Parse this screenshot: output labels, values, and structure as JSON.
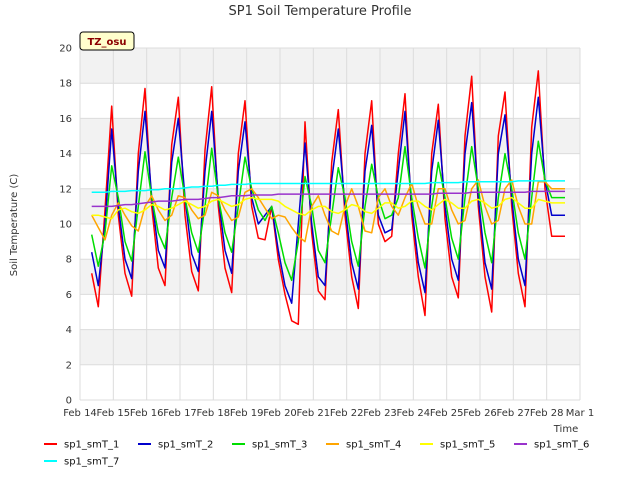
{
  "chart_data": {
    "type": "line",
    "title": "SP1 Soil Temperature Profile",
    "xlabel": "Time",
    "ylabel": "Soil Temperature (C)",
    "badge": "TZ_osu",
    "ylim": [
      0,
      20
    ],
    "yticks": [
      0,
      2,
      4,
      6,
      8,
      10,
      12,
      14,
      16,
      18,
      20
    ],
    "xlim": [
      0,
      15
    ],
    "xticks": [
      {
        "pos": 0,
        "label": "Feb 14"
      },
      {
        "pos": 1,
        "label": "Feb 15"
      },
      {
        "pos": 2,
        "label": "Feb 16"
      },
      {
        "pos": 3,
        "label": "Feb 17"
      },
      {
        "pos": 4,
        "label": "Feb 18"
      },
      {
        "pos": 5,
        "label": "Feb 19"
      },
      {
        "pos": 6,
        "label": "Feb 20"
      },
      {
        "pos": 7,
        "label": "Feb 21"
      },
      {
        "pos": 8,
        "label": "Feb 22"
      },
      {
        "pos": 9,
        "label": "Feb 23"
      },
      {
        "pos": 10,
        "label": "Feb 24"
      },
      {
        "pos": 11,
        "label": "Feb 25"
      },
      {
        "pos": 12,
        "label": "Feb 26"
      },
      {
        "pos": 13,
        "label": "Feb 27"
      },
      {
        "pos": 14,
        "label": "Feb 28"
      },
      {
        "pos": 15,
        "label": "Mar 1"
      }
    ],
    "grid": true,
    "legend_position": "bottom",
    "x": [
      0.35,
      0.55,
      0.75,
      0.95,
      1.15,
      1.35,
      1.55,
      1.75,
      1.95,
      2.15,
      2.35,
      2.55,
      2.75,
      2.95,
      3.15,
      3.35,
      3.55,
      3.75,
      3.95,
      4.15,
      4.35,
      4.55,
      4.75,
      4.95,
      5.15,
      5.35,
      5.55,
      5.75,
      5.95,
      6.15,
      6.35,
      6.55,
      6.75,
      6.95,
      7.15,
      7.35,
      7.55,
      7.75,
      7.95,
      8.15,
      8.35,
      8.55,
      8.75,
      8.95,
      9.15,
      9.35,
      9.55,
      9.75,
      9.95,
      10.15,
      10.35,
      10.55,
      10.75,
      10.95,
      11.15,
      11.35,
      11.55,
      11.75,
      11.95,
      12.15,
      12.35,
      12.55,
      12.75,
      12.95,
      13.15,
      13.35,
      13.55,
      13.75,
      13.95,
      14.15,
      14.35,
      14.55
    ],
    "series": [
      {
        "name": "sp1_smT_1",
        "color": "#ff0000",
        "values": [
          7.2,
          5.3,
          10.8,
          16.7,
          10.5,
          7.2,
          5.9,
          14.0,
          17.7,
          11.0,
          7.5,
          6.5,
          14.5,
          17.2,
          10.5,
          7.3,
          6.2,
          14.2,
          17.8,
          11.0,
          7.5,
          6.1,
          14.0,
          17.0,
          11.0,
          9.2,
          9.1,
          11.0,
          8.0,
          6.0,
          4.5,
          4.3,
          15.8,
          9.5,
          6.2,
          5.7,
          13.5,
          16.5,
          10.5,
          7.0,
          5.2,
          14.0,
          17.0,
          10.0,
          9.0,
          9.3,
          14.0,
          17.4,
          10.5,
          7.0,
          4.8,
          14.0,
          16.8,
          10.3,
          7.0,
          5.8,
          15.0,
          18.4,
          11.0,
          7.0,
          5.0,
          15.0,
          17.5,
          11.0,
          7.2,
          5.3,
          15.5,
          18.7,
          12.0,
          9.3,
          9.3,
          9.3
        ]
      },
      {
        "name": "sp1_smT_2",
        "color": "#0000cc",
        "values": [
          8.4,
          6.5,
          10.0,
          15.4,
          11.0,
          8.0,
          6.9,
          13.0,
          16.4,
          11.5,
          8.5,
          7.5,
          13.5,
          16.0,
          11.5,
          8.3,
          7.3,
          13.0,
          16.4,
          11.5,
          8.5,
          7.2,
          13.0,
          15.8,
          11.5,
          10.0,
          10.5,
          11.0,
          8.5,
          6.5,
          5.5,
          10.0,
          14.6,
          10.0,
          7.0,
          6.5,
          12.5,
          15.4,
          11.0,
          7.8,
          6.3,
          13.0,
          15.6,
          10.5,
          9.5,
          9.7,
          13.0,
          16.4,
          11.0,
          7.8,
          6.1,
          13.0,
          15.9,
          11.0,
          8.0,
          6.8,
          14.0,
          16.9,
          11.5,
          7.8,
          6.3,
          14.0,
          16.2,
          11.5,
          8.0,
          6.5,
          14.0,
          17.2,
          12.5,
          10.5,
          10.5,
          10.5
        ]
      },
      {
        "name": "sp1_smT_3",
        "color": "#00dd00",
        "values": [
          9.4,
          7.6,
          9.5,
          13.3,
          11.5,
          9.0,
          7.9,
          11.0,
          14.1,
          11.5,
          9.5,
          8.6,
          11.5,
          13.8,
          11.5,
          9.5,
          8.4,
          11.0,
          14.3,
          11.5,
          9.5,
          8.4,
          11.0,
          13.8,
          12.0,
          10.8,
          10.2,
          11.0,
          9.5,
          7.8,
          6.8,
          9.0,
          12.7,
          11.0,
          8.5,
          7.8,
          10.5,
          13.2,
          11.5,
          9.0,
          7.6,
          11.0,
          13.4,
          11.5,
          10.3,
          10.5,
          11.5,
          14.4,
          11.5,
          9.2,
          7.5,
          11.0,
          13.5,
          11.5,
          9.2,
          8.0,
          11.5,
          14.4,
          12.0,
          9.5,
          7.8,
          11.5,
          14.0,
          12.0,
          9.5,
          8.0,
          11.5,
          14.7,
          12.5,
          11.5,
          11.5,
          11.5
        ]
      },
      {
        "name": "sp1_smT_4",
        "color": "#ffa500",
        "values": [
          10.5,
          9.8,
          9.1,
          10.5,
          11.2,
          10.5,
          9.9,
          9.6,
          11.0,
          11.6,
          10.8,
          10.2,
          10.5,
          11.6,
          11.5,
          10.8,
          10.3,
          10.5,
          11.8,
          11.6,
          10.8,
          10.2,
          10.4,
          11.8,
          12.0,
          11.5,
          10.9,
          10.3,
          10.5,
          10.4,
          9.8,
          9.3,
          9.0,
          11.0,
          11.6,
          10.5,
          9.6,
          9.4,
          11.0,
          12.0,
          11.0,
          9.6,
          9.5,
          11.5,
          12.0,
          11.0,
          10.5,
          11.5,
          12.3,
          11.0,
          10.0,
          10.0,
          12.0,
          12.0,
          10.8,
          10.0,
          10.2,
          12.0,
          12.5,
          11.0,
          10.0,
          10.2,
          12.0,
          12.5,
          11.0,
          10.0,
          10.0,
          12.4,
          12.4,
          12.0,
          12.0,
          12.0
        ]
      },
      {
        "name": "sp1_smT_5",
        "color": "#ffff00",
        "values": [
          10.5,
          10.5,
          10.4,
          10.3,
          10.8,
          10.9,
          10.7,
          10.6,
          10.8,
          11.1,
          11.0,
          10.8,
          10.9,
          11.1,
          11.3,
          11.1,
          10.9,
          11.0,
          11.3,
          11.4,
          11.2,
          11.0,
          11.1,
          11.4,
          11.5,
          11.4,
          11.4,
          11.4,
          11.3,
          11.0,
          10.8,
          10.6,
          10.5,
          10.8,
          11.0,
          11.0,
          10.7,
          10.6,
          10.8,
          11.1,
          11.0,
          10.7,
          10.6,
          10.9,
          11.2,
          11.2,
          10.9,
          11.0,
          11.3,
          11.3,
          11.0,
          10.8,
          11.1,
          11.4,
          11.2,
          10.9,
          10.9,
          11.3,
          11.4,
          11.2,
          10.9,
          11.0,
          11.4,
          11.5,
          11.2,
          10.9,
          10.9,
          11.4,
          11.3,
          11.2,
          11.2,
          11.2
        ]
      },
      {
        "name": "sp1_smT_6",
        "color": "#9933cc",
        "values": [
          11.0,
          11.0,
          11.0,
          11.0,
          11.05,
          11.1,
          11.1,
          11.15,
          11.2,
          11.25,
          11.3,
          11.3,
          11.3,
          11.35,
          11.4,
          11.4,
          11.4,
          11.45,
          11.5,
          11.5,
          11.55,
          11.6,
          11.6,
          11.6,
          11.65,
          11.65,
          11.65,
          11.65,
          11.7,
          11.7,
          11.7,
          11.7,
          11.7,
          11.7,
          11.7,
          11.7,
          11.7,
          11.7,
          11.7,
          11.7,
          11.7,
          11.7,
          11.7,
          11.7,
          11.7,
          11.7,
          11.7,
          11.7,
          11.7,
          11.7,
          11.7,
          11.7,
          11.75,
          11.75,
          11.75,
          11.75,
          11.75,
          11.8,
          11.8,
          11.8,
          11.8,
          11.8,
          11.8,
          11.8,
          11.8,
          11.8,
          11.85,
          11.85,
          11.85,
          11.85,
          11.85,
          11.85
        ]
      },
      {
        "name": "sp1_smT_7",
        "color": "#00ffff",
        "values": [
          11.8,
          11.8,
          11.8,
          11.85,
          11.85,
          11.85,
          11.9,
          11.9,
          11.9,
          11.95,
          11.95,
          12.0,
          12.0,
          12.0,
          12.05,
          12.1,
          12.1,
          12.15,
          12.15,
          12.2,
          12.2,
          12.25,
          12.25,
          12.25,
          12.3,
          12.3,
          12.3,
          12.3,
          12.3,
          12.3,
          12.3,
          12.3,
          12.3,
          12.3,
          12.3,
          12.3,
          12.3,
          12.3,
          12.3,
          12.3,
          12.3,
          12.3,
          12.3,
          12.3,
          12.3,
          12.3,
          12.3,
          12.3,
          12.3,
          12.3,
          12.3,
          12.35,
          12.35,
          12.35,
          12.35,
          12.35,
          12.4,
          12.4,
          12.4,
          12.4,
          12.4,
          12.4,
          12.4,
          12.4,
          12.45,
          12.45,
          12.45,
          12.45,
          12.45,
          12.45,
          12.45,
          12.45
        ]
      }
    ]
  }
}
